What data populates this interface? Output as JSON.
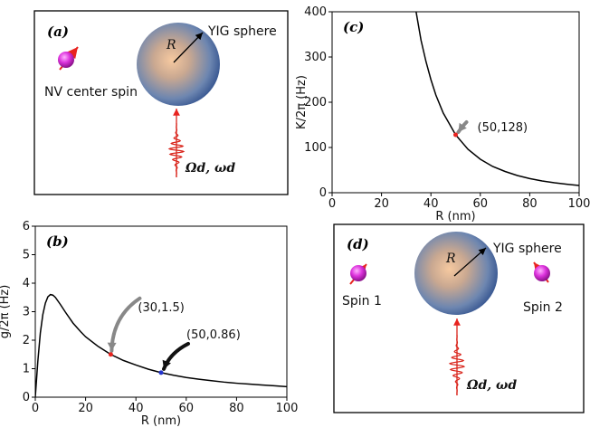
{
  "panel_a": {
    "label": "(a)",
    "sphere_label": "YIG sphere",
    "radius_label": "R",
    "spin_label": "NV center spin",
    "drive_label": "Ωd, ωd"
  },
  "panel_d": {
    "label": "(d)",
    "sphere_label": "YIG sphere",
    "radius_label": "R",
    "spin1_label": "Spin 1",
    "spin2_label": "Spin 2",
    "drive_label": "Ωd, ωd"
  },
  "colors": {
    "spin": "#cc22cc",
    "arrow": "#e8231f",
    "wave": "#d9251c",
    "marker_red": "#e8231f",
    "marker_blue": "#2233cc"
  },
  "chart_data": [
    {
      "id": "c",
      "type": "line",
      "panel_label": "(c)",
      "xlabel": "R (nm)",
      "ylabel": "K/2π (Hz)",
      "xlim": [
        0,
        100
      ],
      "ylim": [
        0,
        400
      ],
      "xticks": [
        0,
        20,
        40,
        60,
        80,
        100
      ],
      "yticks": [
        0,
        100,
        200,
        300,
        400
      ],
      "series": [
        {
          "x": [
            34,
            36,
            38,
            40,
            42,
            45,
            50,
            55,
            60,
            65,
            70,
            75,
            80,
            85,
            90,
            95,
            100
          ],
          "y": [
            400,
            337,
            290,
            250,
            216,
            176,
            128,
            96,
            74,
            58,
            47,
            38,
            31.3,
            26,
            21.9,
            18.7,
            16
          ]
        }
      ],
      "points": [
        {
          "x": 50,
          "y": 128,
          "label": "(50,128)",
          "color": "red"
        }
      ]
    },
    {
      "id": "b",
      "type": "line",
      "panel_label": "(b)",
      "xlabel": "R (nm)",
      "ylabel": "g/2π (Hz)",
      "xlim": [
        0,
        100
      ],
      "ylim": [
        0,
        6
      ],
      "xticks": [
        0,
        20,
        40,
        60,
        80,
        100
      ],
      "yticks": [
        0,
        1,
        2,
        3,
        4,
        5,
        6
      ],
      "series": [
        {
          "x": [
            0,
            1,
            2,
            3,
            4,
            5,
            6,
            7,
            8,
            10,
            12,
            15,
            18,
            20,
            25,
            30,
            35,
            40,
            45,
            50,
            55,
            60,
            65,
            70,
            75,
            80,
            85,
            90,
            95,
            100
          ],
          "y": [
            0,
            1.25,
            2.25,
            2.9,
            3.3,
            3.52,
            3.6,
            3.58,
            3.5,
            3.25,
            2.98,
            2.6,
            2.3,
            2.12,
            1.78,
            1.5,
            1.29,
            1.13,
            0.98,
            0.86,
            0.77,
            0.69,
            0.63,
            0.58,
            0.53,
            0.49,
            0.46,
            0.43,
            0.4,
            0.37
          ]
        }
      ],
      "points": [
        {
          "x": 30,
          "y": 1.5,
          "label": "(30,1.5)",
          "color": "red"
        },
        {
          "x": 50,
          "y": 0.86,
          "label": "(50,0.86)",
          "color": "blue"
        }
      ]
    }
  ]
}
